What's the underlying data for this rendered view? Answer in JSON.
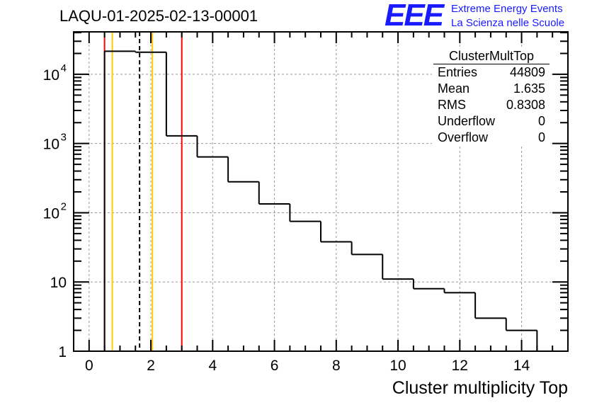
{
  "title": "LAQU-01-2025-02-13-00001",
  "logo": {
    "mark": "EEE",
    "line1": "Extreme Energy Events",
    "line2": "La Scienza nelle Scuole",
    "color": "#1a1aff"
  },
  "stats": {
    "name": "ClusterMultTop",
    "rows": [
      {
        "label": "Entries",
        "value": "44809"
      },
      {
        "label": "Mean",
        "value": "1.635"
      },
      {
        "label": "RMS",
        "value": "0.8308"
      },
      {
        "label": "Underflow",
        "value": "0"
      },
      {
        "label": "Overflow",
        "value": "0"
      }
    ]
  },
  "chart_data": {
    "type": "bar",
    "histogram": true,
    "title": "LAQU-01-2025-02-13-00001",
    "xlabel": "Cluster multiplicity Top",
    "ylabel": "",
    "xlim": [
      -0.5,
      15.5
    ],
    "ylim": [
      1,
      41000
    ],
    "yscale": "log",
    "grid": true,
    "bin_centers": [
      1,
      2,
      3,
      4,
      5,
      6,
      7,
      8,
      9,
      10,
      11,
      12,
      13,
      14
    ],
    "values": [
      21500,
      20850,
      1290,
      640,
      280,
      134,
      75,
      38,
      25,
      11,
      8,
      7,
      3,
      2
    ],
    "xticks": [
      0,
      2,
      4,
      6,
      8,
      10,
      12,
      14
    ],
    "xtick_labels": [
      "0",
      "2",
      "4",
      "6",
      "8",
      "10",
      "12",
      "14"
    ],
    "yticks": [
      1,
      10,
      100,
      1000,
      10000
    ],
    "ytick_labels": [
      {
        "base": "1",
        "exp": ""
      },
      {
        "base": "10",
        "exp": ""
      },
      {
        "base": "10",
        "exp": "2"
      },
      {
        "base": "10",
        "exp": "3"
      },
      {
        "base": "10",
        "exp": "4"
      }
    ],
    "vlines": [
      {
        "x": 0.5,
        "color": "#ff0000",
        "style": "solid"
      },
      {
        "x": 0.75,
        "color": "#ffcc00",
        "style": "solid"
      },
      {
        "x": 1.635,
        "color": "#000000",
        "style": "dashed"
      },
      {
        "x": 2.05,
        "color": "#ffcc00",
        "style": "solid"
      },
      {
        "x": 3.0,
        "color": "#ff0000",
        "style": "solid"
      }
    ]
  }
}
